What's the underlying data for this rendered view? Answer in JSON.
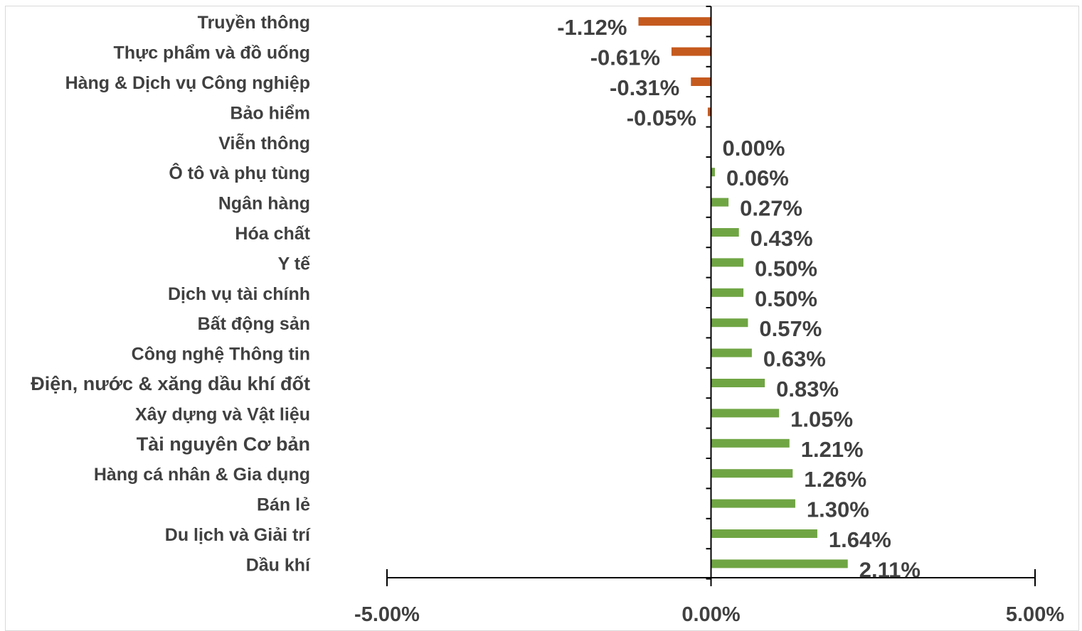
{
  "chart_data": {
    "type": "bar",
    "orientation": "horizontal",
    "categories": [
      "Truyền thông",
      "Thực phẩm và đồ uống",
      "Hàng & Dịch vụ Công nghiệp",
      "Bảo hiểm",
      "Viễn thông",
      "Ô tô và phụ tùng",
      "Ngân hàng",
      "Hóa chất",
      "Y tế",
      "Dịch vụ tài chính",
      "Bất động sản",
      "Công nghệ Thông tin",
      "Điện, nước & xăng dầu khí đốt",
      "Xây dựng và Vật liệu",
      "Tài nguyên Cơ bản",
      "Hàng cá nhân & Gia dụng",
      "Bán lẻ",
      "Du lịch và Giải trí",
      "Dầu khí"
    ],
    "values": [
      -1.12,
      -0.61,
      -0.31,
      -0.05,
      0.0,
      0.06,
      0.27,
      0.43,
      0.5,
      0.5,
      0.57,
      0.63,
      0.83,
      1.05,
      1.21,
      1.26,
      1.3,
      1.64,
      2.11
    ],
    "data_labels": [
      "-1.12%",
      "-0.61%",
      "-0.31%",
      "-0.05%",
      "0.00%",
      "0.06%",
      "0.27%",
      "0.43%",
      "0.50%",
      "0.50%",
      "0.57%",
      "0.63%",
      "0.83%",
      "1.05%",
      "1.21%",
      "1.26%",
      "1.30%",
      "1.64%",
      "2.11%"
    ],
    "xlim": [
      -5,
      5
    ],
    "x_ticks": [
      -5,
      0,
      5
    ],
    "x_tick_labels": [
      "-5.00%",
      "0.00%",
      "5.00%"
    ],
    "title": "",
    "xlabel": "",
    "ylabel": "",
    "grid": false,
    "legend": "none",
    "colors": {
      "positive": "#70a544",
      "negative": "#c55a1e",
      "axis": "#000000",
      "text": "#404040"
    }
  }
}
